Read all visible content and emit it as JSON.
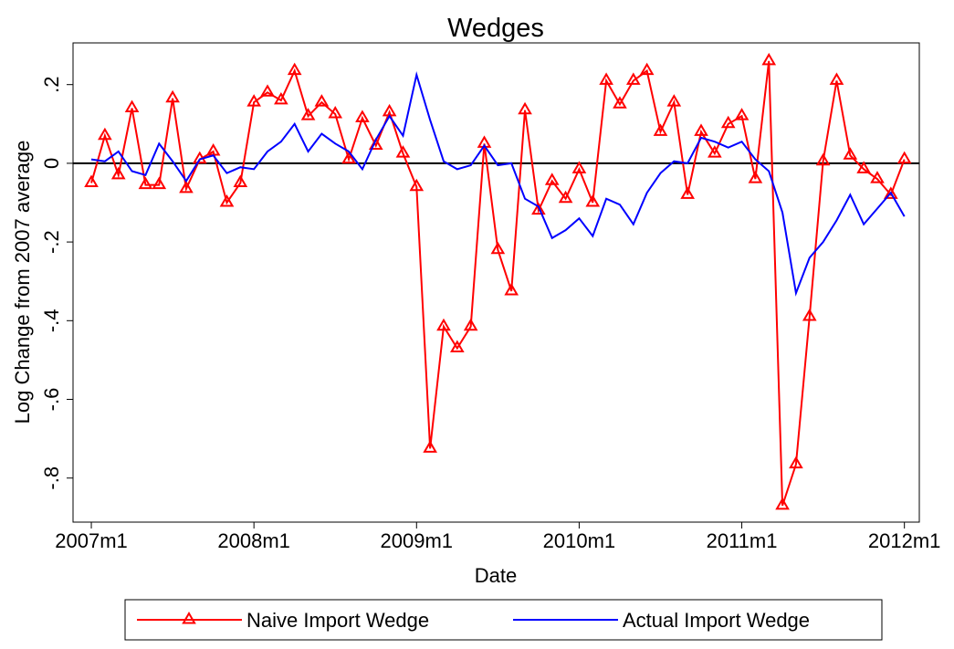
{
  "chart_data": {
    "type": "line",
    "title": "Wedges",
    "x_label": "Date",
    "y_label": "Log Change from 2007 average",
    "x": [
      564,
      565,
      566,
      567,
      568,
      569,
      570,
      571,
      572,
      573,
      574,
      575,
      576,
      577,
      578,
      579,
      580,
      581,
      582,
      583,
      584,
      585,
      586,
      587,
      588,
      589,
      590,
      591,
      592,
      593,
      594,
      595,
      596,
      597,
      598,
      599,
      600,
      601,
      602,
      603,
      604,
      605,
      606,
      607,
      608,
      609,
      610,
      611,
      612,
      613,
      614,
      615,
      616,
      617,
      618,
      619,
      620,
      621,
      622,
      623,
      624
    ],
    "series": [
      {
        "name": "Naive Import Wedge",
        "color": "#ff0000",
        "marker": "triangle",
        "values": [
          -0.05,
          0.07,
          -0.03,
          0.14,
          -0.055,
          -0.055,
          0.165,
          -0.065,
          0.01,
          0.03,
          -0.1,
          -0.05,
          0.155,
          0.18,
          0.16,
          0.235,
          0.12,
          0.155,
          0.125,
          0.01,
          0.115,
          0.045,
          0.13,
          0.025,
          -0.06,
          -0.725,
          -0.415,
          -0.47,
          -0.415,
          0.05,
          -0.22,
          -0.325,
          0.135,
          -0.12,
          -0.045,
          -0.09,
          -0.015,
          -0.1,
          0.21,
          0.15,
          0.21,
          0.235,
          0.08,
          0.155,
          -0.08,
          0.08,
          0.025,
          0.1,
          0.12,
          -0.04,
          0.26,
          -0.87,
          -0.765,
          -0.39,
          0.005,
          0.21,
          0.02,
          -0.015,
          -0.04,
          -0.08,
          0.01
        ]
      },
      {
        "name": "Actual Import Wedge",
        "color": "#0000ff",
        "values": [
          0.01,
          0.005,
          0.03,
          -0.02,
          -0.03,
          0.05,
          0.005,
          -0.045,
          0.01,
          0.02,
          -0.025,
          -0.01,
          -0.015,
          0.03,
          0.055,
          0.1,
          0.03,
          0.075,
          0.05,
          0.03,
          -0.015,
          0.06,
          0.12,
          0.07,
          0.225,
          0.11,
          0.005,
          -0.015,
          -0.005,
          0.045,
          -0.005,
          0.0,
          -0.09,
          -0.11,
          -0.19,
          -0.17,
          -0.14,
          -0.185,
          -0.09,
          -0.105,
          -0.155,
          -0.075,
          -0.025,
          0.005,
          0.0,
          0.065,
          0.055,
          0.04,
          0.055,
          0.01,
          -0.02,
          -0.125,
          -0.33,
          -0.24,
          -0.2,
          -0.145,
          -0.08,
          -0.155,
          -0.115,
          -0.075,
          -0.135
        ]
      }
    ],
    "xlim": [
      562.65,
      625.1
    ],
    "xticks": [
      {
        "value": 564,
        "label": "2007m1"
      },
      {
        "value": 576,
        "label": "2008m1"
      },
      {
        "value": 588,
        "label": "2009m1"
      },
      {
        "value": 600,
        "label": "2010m1"
      },
      {
        "value": 612,
        "label": "2011m1"
      },
      {
        "value": 624,
        "label": "2012m1"
      }
    ],
    "ylim": [
      -0.912,
      0.306
    ],
    "yticks": [
      {
        "value": 0.2,
        "label": ".2"
      },
      0,
      {
        "value": -0.2,
        "label": "-.2"
      },
      {
        "value": -0.4,
        "label": "-.4"
      },
      {
        "value": -0.6,
        "label": "-.6"
      },
      {
        "value": -0.8,
        "label": "-.8"
      }
    ],
    "reference_line": 0,
    "grid": false,
    "legend": "bottom"
  }
}
